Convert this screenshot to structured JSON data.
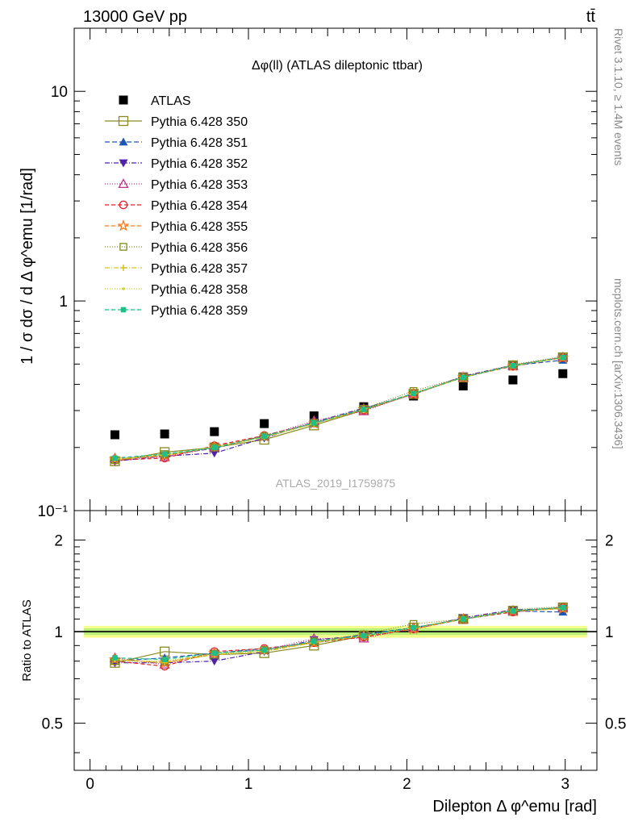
{
  "header": {
    "energy_label": "13000 GeV pp",
    "process_label": "tt̄"
  },
  "side_labels": {
    "rivet": "Rivet 3.1.10, ≥ 1.4M events",
    "mcplots": "mcplots.cern.ch [arXiv:1306.3436]"
  },
  "watermark": "ATLAS_2019_I1759875",
  "colors": {
    "ratio_band_outer": "#f5ff8c",
    "ratio_band_inner": "#b8f07a",
    "data": "#000000"
  },
  "chart_data": [
    {
      "type": "scatter",
      "title": "Δφ(ll) (ATLAS dileptonic ttbar)",
      "xlabel": "Dilepton Δ φ^emu [rad]",
      "ylabel": "1 / σ  dσ / d Δ φ^emu [1/rad]",
      "yscale": "log",
      "ylim": [
        0.1,
        20
      ],
      "xlim": [
        -0.1,
        3.2
      ],
      "ytick_labels": [
        "10⁻¹",
        "1",
        "10"
      ],
      "legend_position": "top-left",
      "x": [
        0.157,
        0.471,
        0.785,
        1.1,
        1.414,
        1.728,
        2.042,
        2.356,
        2.67,
        2.985
      ],
      "series": [
        {
          "name": "ATLAS",
          "color": "#000000",
          "marker": "square-filled",
          "values": [
            0.23,
            0.232,
            0.238,
            0.26,
            0.283,
            0.313,
            0.352,
            0.393,
            0.42,
            0.45
          ]
        },
        {
          "name": "Pythia 6.428 350",
          "color": "#8a8a22",
          "marker": "square-open",
          "dash": "",
          "values": [
            0.172,
            0.19,
            0.2,
            0.218,
            0.255,
            0.302,
            0.36,
            0.432,
            0.493,
            0.538
          ]
        },
        {
          "name": "Pythia 6.428 351",
          "color": "#1f56b4",
          "marker": "triangle-up-filled",
          "dash": "6,3",
          "values": [
            0.176,
            0.184,
            0.198,
            0.228,
            0.26,
            0.306,
            0.362,
            0.434,
            0.492,
            0.522
          ]
        },
        {
          "name": "Pythia 6.428 352",
          "color": "#4f22a8",
          "marker": "triangle-down-filled",
          "dash": "6,2,1,2",
          "values": [
            0.172,
            0.182,
            0.188,
            0.222,
            0.264,
            0.308,
            0.358,
            0.438,
            0.494,
            0.536
          ]
        },
        {
          "name": "Pythia 6.428 353",
          "color": "#c0338a",
          "marker": "triangle-up-open",
          "dash": "1,2",
          "values": [
            0.178,
            0.18,
            0.2,
            0.226,
            0.268,
            0.298,
            0.362,
            0.432,
            0.49,
            0.54
          ]
        },
        {
          "name": "Pythia 6.428 354",
          "color": "#e0202a",
          "marker": "circle-open",
          "dash": "5,3",
          "values": [
            0.174,
            0.178,
            0.204,
            0.228,
            0.262,
            0.302,
            0.36,
            0.434,
            0.488,
            0.538
          ]
        },
        {
          "name": "Pythia 6.428 355",
          "color": "#f07a20",
          "marker": "star-open",
          "dash": "5,3",
          "values": [
            0.176,
            0.182,
            0.202,
            0.226,
            0.26,
            0.304,
            0.36,
            0.432,
            0.49,
            0.536
          ]
        },
        {
          "name": "Pythia 6.428 356",
          "color": "#7f8c1e",
          "marker": "square-open-small",
          "dash": "1,2",
          "values": [
            0.174,
            0.186,
            0.2,
            0.226,
            0.262,
            0.306,
            0.372,
            0.434,
            0.496,
            0.544
          ]
        },
        {
          "name": "Pythia 6.428 357",
          "color": "#d8c21a",
          "marker": "plus",
          "dash": "6,2,1,2",
          "values": [
            0.176,
            0.184,
            0.2,
            0.224,
            0.26,
            0.304,
            0.362,
            0.432,
            0.492,
            0.536
          ]
        },
        {
          "name": "Pythia 6.428 358",
          "color": "#c8d820",
          "marker": "dot",
          "dash": "1,2",
          "values": [
            0.175,
            0.185,
            0.201,
            0.225,
            0.261,
            0.303,
            0.361,
            0.433,
            0.491,
            0.537
          ]
        },
        {
          "name": "Pythia 6.428 359",
          "color": "#1fbf8a",
          "marker": "square-filled-small",
          "dash": "5,3",
          "values": [
            0.178,
            0.186,
            0.2,
            0.226,
            0.262,
            0.304,
            0.362,
            0.432,
            0.492,
            0.538
          ]
        }
      ]
    },
    {
      "type": "scatter",
      "xlabel": "Dilepton Δ φ^emu [rad]",
      "ylabel": "Ratio to ATLAS",
      "yscale": "log",
      "ylim": [
        0.35,
        2.5
      ],
      "xlim": [
        -0.1,
        3.2
      ],
      "xtick_labels": [
        "0",
        "1",
        "2",
        "3"
      ],
      "ytick_labels": [
        "0.5",
        "1",
        "2"
      ],
      "reference_line": 1,
      "band": {
        "outer": [
          0.955,
          1.045
        ],
        "inner": [
          0.975,
          1.025
        ]
      },
      "x": [
        0.157,
        0.471,
        0.785,
        1.1,
        1.414,
        1.728,
        2.042,
        2.356,
        2.67,
        2.985
      ],
      "series": [
        {
          "name": "Pythia 6.428 350",
          "values": [
            0.79,
            0.86,
            0.84,
            0.85,
            0.9,
            0.97,
            1.03,
            1.1,
            1.17,
            1.2
          ]
        },
        {
          "name": "Pythia 6.428 351",
          "values": [
            0.8,
            0.82,
            0.85,
            0.88,
            0.92,
            0.98,
            1.03,
            1.1,
            1.17,
            1.16
          ]
        },
        {
          "name": "Pythia 6.428 352",
          "values": [
            0.79,
            0.79,
            0.8,
            0.86,
            0.94,
            0.97,
            1.02,
            1.11,
            1.18,
            1.19
          ]
        },
        {
          "name": "Pythia 6.428 353",
          "values": [
            0.82,
            0.78,
            0.85,
            0.87,
            0.95,
            0.95,
            1.03,
            1.1,
            1.17,
            1.2
          ]
        },
        {
          "name": "Pythia 6.428 354",
          "values": [
            0.8,
            0.77,
            0.86,
            0.88,
            0.92,
            0.96,
            1.02,
            1.1,
            1.16,
            1.2
          ]
        },
        {
          "name": "Pythia 6.428 355",
          "values": [
            0.81,
            0.79,
            0.85,
            0.87,
            0.92,
            0.97,
            1.02,
            1.1,
            1.17,
            1.19
          ]
        },
        {
          "name": "Pythia 6.428 356",
          "values": [
            0.8,
            0.8,
            0.84,
            0.87,
            0.93,
            0.98,
            1.06,
            1.1,
            1.18,
            1.21
          ]
        },
        {
          "name": "Pythia 6.428 357",
          "values": [
            0.81,
            0.79,
            0.84,
            0.86,
            0.92,
            0.97,
            1.03,
            1.1,
            1.17,
            1.19
          ]
        },
        {
          "name": "Pythia 6.428 358",
          "values": [
            0.805,
            0.8,
            0.845,
            0.865,
            0.922,
            0.968,
            1.025,
            1.1,
            1.17,
            1.19
          ]
        },
        {
          "name": "Pythia 6.428 359",
          "values": [
            0.82,
            0.81,
            0.85,
            0.87,
            0.93,
            0.97,
            1.03,
            1.1,
            1.17,
            1.2
          ]
        }
      ]
    }
  ]
}
